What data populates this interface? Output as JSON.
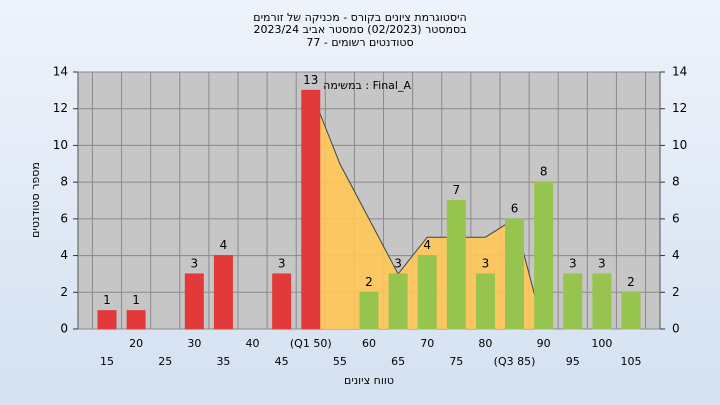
{
  "chart_data": {
    "type": "bar",
    "title_lines": [
      "היסטוגרמת ציונים בקורס - מכניקה של זורמים",
      "בסמסטר  (02/2023)  סמסטר אביב 2023/24",
      "סטודנטים רשומים - 77"
    ],
    "annotation": "במשימה : Final_A",
    "y_label": "מספר סטודנטים",
    "x_label": "טווח ציונים",
    "categories": [
      "15",
      "20",
      "25",
      "30",
      "35",
      "40",
      "45",
      "(Q1 50)",
      "55",
      "60",
      "65",
      "70",
      "75",
      "80",
      "(Q3 85)",
      "90",
      "95",
      "100",
      "105"
    ],
    "values": [
      1,
      1,
      0,
      3,
      4,
      0,
      3,
      13,
      0,
      2,
      3,
      4,
      7,
      3,
      6,
      8,
      3,
      3,
      2
    ],
    "colors": [
      "#e23a3a",
      "#e23a3a",
      "#e23a3a",
      "#e23a3a",
      "#e23a3a",
      "#e23a3a",
      "#e23a3a",
      "#e23a3a",
      "#e23a3a",
      "#96c44e",
      "#96c44e",
      "#96c44e",
      "#96c44e",
      "#96c44e",
      "#96c44e",
      "#96c44e",
      "#96c44e",
      "#96c44e",
      "#96c44e"
    ],
    "area": {
      "color": "#ffc658",
      "values": [
        null,
        null,
        null,
        null,
        null,
        null,
        null,
        13,
        9,
        6,
        3,
        5,
        5,
        5,
        6,
        0,
        null,
        null,
        null
      ]
    },
    "ylim": [
      0,
      14
    ],
    "yticks": [
      0,
      2,
      4,
      6,
      8,
      10,
      12,
      14
    ],
    "grid": true
  }
}
